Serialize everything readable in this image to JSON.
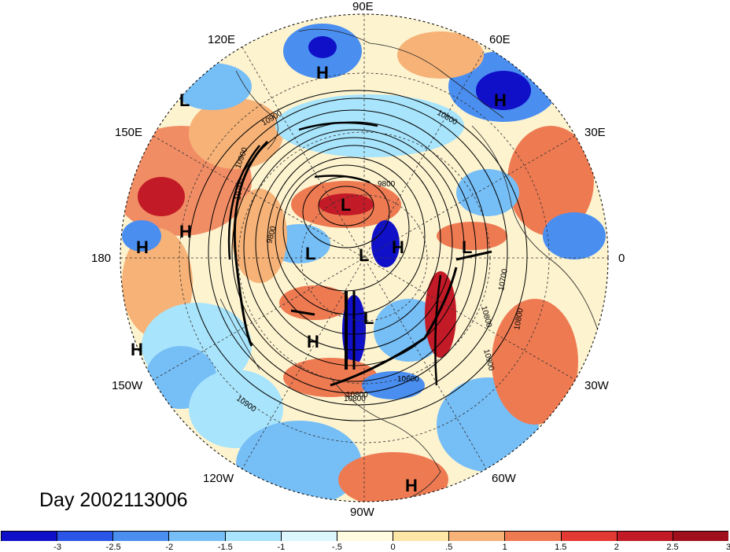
{
  "title": "Day 2002113006",
  "longitude_labels": {
    "e90": "90E",
    "e120": "120E",
    "e60": "60E",
    "e150": "150E",
    "e30": "30E",
    "d180": "180",
    "d0": "0",
    "w150": "150W",
    "w30": "30W",
    "w120": "120W",
    "w60": "60W",
    "w90": "90W"
  },
  "pressure_centers": [
    "H",
    "H",
    "L",
    "H",
    "H",
    "H",
    "L",
    "L",
    "L",
    "H",
    "L",
    "L",
    "H",
    "H",
    "H"
  ],
  "contour_labels": [
    "10900",
    "10900",
    "9800",
    "9800",
    "10800",
    "10700",
    "10900",
    "10800",
    "10800",
    "10900",
    "10800",
    "10600",
    "10700",
    "10800"
  ],
  "colorbar": {
    "colors": [
      "#1010c8",
      "#2a55e6",
      "#4a8ef0",
      "#76bef6",
      "#a8e4fb",
      "#dcf6fe",
      "#fffbe0",
      "#fde6a6",
      "#f6b277",
      "#ee7a52",
      "#e23a32",
      "#c21a26",
      "#a0101c"
    ],
    "ticks": [
      "-3",
      "-2.5",
      "-2",
      "-1.5",
      "-1",
      "-.5",
      "0",
      ".5",
      "1",
      "1.5",
      "2",
      "2.5",
      "3"
    ]
  }
}
